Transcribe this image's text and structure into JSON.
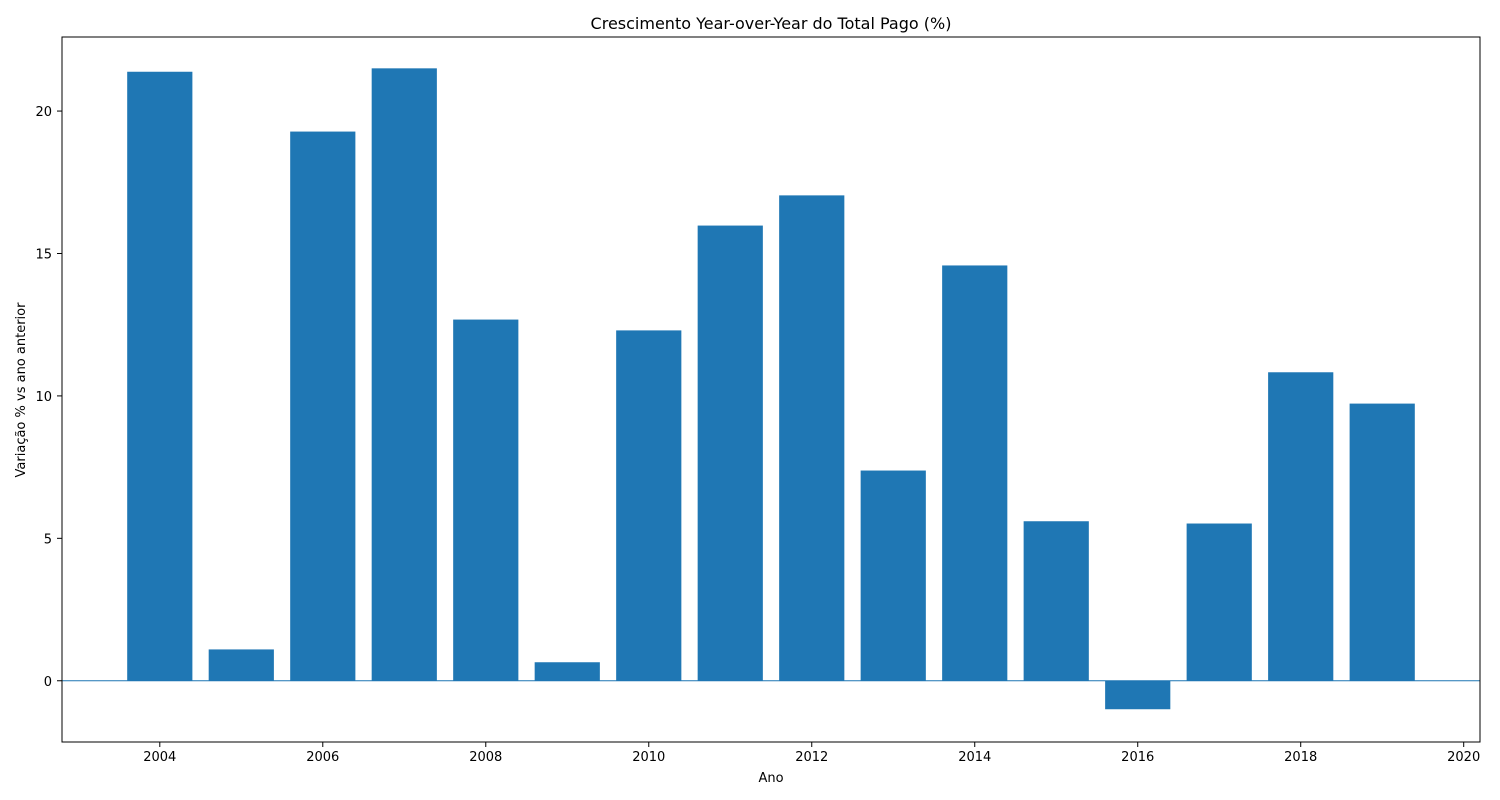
{
  "chart_data": {
    "type": "bar",
    "title": "Crescimento Year-over-Year do Total Pago (%)",
    "xlabel": "Ano",
    "ylabel": "Variação % vs ano anterior",
    "x": [
      2004,
      2005,
      2006,
      2007,
      2008,
      2009,
      2010,
      2011,
      2012,
      2013,
      2014,
      2015,
      2016,
      2017,
      2018,
      2019
    ],
    "values": [
      21.38,
      1.1,
      19.28,
      21.5,
      12.68,
      0.65,
      12.3,
      15.98,
      17.04,
      7.38,
      14.58,
      5.6,
      -1.0,
      5.52,
      10.83,
      9.73
    ],
    "xlim": [
      2002.8,
      2020.2
    ],
    "ylim": [
      -2.15,
      22.6
    ],
    "xticks": [
      2004,
      2006,
      2008,
      2010,
      2012,
      2014,
      2016,
      2018,
      2020
    ],
    "yticks": [
      0,
      5,
      10,
      15,
      20
    ],
    "bar_color": "#1f77b4",
    "zero_line": true,
    "grid": false
  }
}
